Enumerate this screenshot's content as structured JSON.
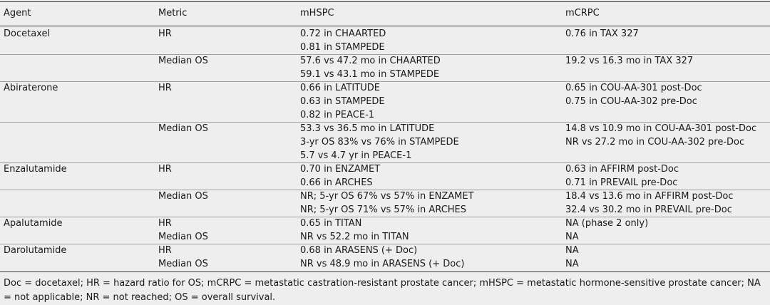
{
  "table": {
    "header": [
      "Agent",
      "Metric",
      "mHSPC",
      "mCRPC"
    ],
    "rows": [
      [
        "Docetaxel",
        "HR",
        [
          "0.72 in CHAARTED",
          "0.81 in STAMPEDE"
        ],
        [
          "0.76 in TAX 327"
        ]
      ],
      [
        "",
        "Median OS",
        [
          "57.6 vs 47.2 mo in CHAARTED",
          "59.1 vs 43.1 mo in STAMPEDE"
        ],
        [
          "19.2 vs 16.3 mo in TAX 327"
        ]
      ],
      [
        "Abiraterone",
        "HR",
        [
          "0.66 in LATITUDE",
          "0.63 in STAMPEDE",
          "0.82 in PEACE-1"
        ],
        [
          "0.65 in COU-AA-301 post-Doc",
          "0.75 in COU-AA-302 pre-Doc"
        ]
      ],
      [
        "",
        "Median OS",
        [
          "53.3 vs 36.5 mo in LATITUDE",
          "3-yr OS 83% vs 76% in STAMPEDE",
          "5.7 vs 4.7 yr in PEACE-1"
        ],
        [
          "14.8 vs 10.9 mo in COU-AA-301 post-Doc",
          "NR vs 27.2 mo in COU-AA-302 pre-Doc"
        ]
      ],
      [
        "Enzalutamide",
        "HR",
        [
          "0.70 in ENZAMET",
          "0.66 in ARCHES"
        ],
        [
          "0.63 in AFFIRM post-Doc",
          "0.71 in PREVAIL pre-Doc"
        ]
      ],
      [
        "",
        "Median OS",
        [
          "NR; 5-yr OS 67% vs 57% in ENZAMET",
          "NR; 5-yr OS 71% vs 57% in ARCHES"
        ],
        [
          "18.4 vs 13.6 mo in AFFIRM post-Doc",
          "32.4 vs 30.2 mo in PREVAIL pre-Doc"
        ]
      ],
      [
        "Apalutamide",
        "HR",
        [
          "0.65 in TITAN"
        ],
        [
          "NA (phase 2 only)"
        ]
      ],
      [
        "",
        "Median OS",
        [
          "NR vs 52.2 mo in TITAN"
        ],
        [
          "NA"
        ]
      ],
      [
        "Darolutamide",
        "HR",
        [
          "0.68 in ARASENS (+ Doc)"
        ],
        [
          "NA"
        ]
      ],
      [
        "",
        "Median OS",
        [
          "NR vs 48.9 mo in ARASENS (+ Doc)"
        ],
        [
          "NA"
        ]
      ]
    ],
    "footnote": "Doc = docetaxel; HR = hazard ratio for OS; mCRPC = metastatic castration-resistant prostate cancer; mHSPC = metastatic hormone-sensitive prostate cancer; NA = not applicable; NR = not reached; OS = overall survival."
  }
}
